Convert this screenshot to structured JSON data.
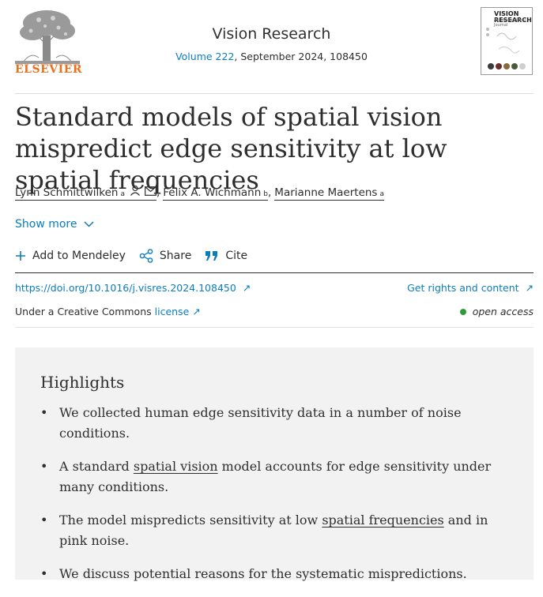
{
  "header": {
    "publisher": "ELSEVIER",
    "journal": "Vision Research",
    "volume_link": "Volume 222",
    "issue_info": ", September 2024, 108450",
    "cover_title": "VISION\nRESEARCH",
    "cover_subtitle": "An International Journal"
  },
  "article": {
    "title": "Standard models of spatial vision mispredict edge sensitivity at low spatial frequencies",
    "authors": [
      {
        "name": "Lynn Schmittwilken",
        "sup": "a"
      },
      {
        "name": "Felix A. Wichmann",
        "sup": "b"
      },
      {
        "name": "Marianne Maertens",
        "sup": "a"
      }
    ],
    "show_more": "Show more"
  },
  "actions": {
    "mendeley": "Add to Mendeley",
    "share": "Share",
    "cite": "Cite"
  },
  "links": {
    "doi": "https://doi.org/10.1016/j.visres.2024.108450",
    "rights": "Get rights and content",
    "license_prefix": "Under a Creative Commons",
    "license_link": "license",
    "open_access": "open access"
  },
  "highlights": {
    "title": "Highlights",
    "items": [
      {
        "text": "We collected human edge sensitivity data in a number of noise conditions."
      },
      {
        "pre": "A standard ",
        "link": "spatial vision",
        "post": " model accounts for edge sensitivity under many conditions."
      },
      {
        "pre": "The model mispredicts sensitivity at low ",
        "link": "spatial frequencies",
        "post": " and in pink noise."
      },
      {
        "text": "We discuss potential reasons for the systematic mispredictions."
      }
    ]
  },
  "colors": {
    "link": "#0c7dbb",
    "publisher_orange": "#e9711c",
    "open_access_dot": "#2f9b3a",
    "highlights_bg": "#f2f2f2"
  }
}
